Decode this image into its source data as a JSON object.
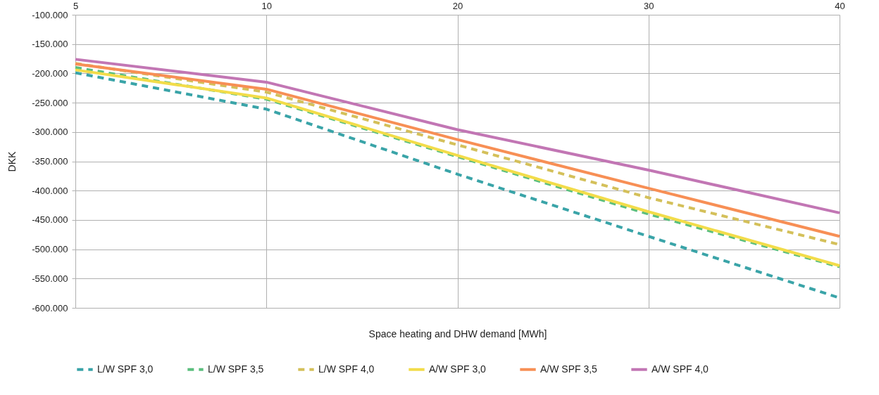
{
  "chart_data": {
    "type": "line",
    "xlabel": "Space heating and DHW demand [MWh]",
    "ylabel": "DKK",
    "categories": [
      "5",
      "10",
      "20",
      "30",
      "40"
    ],
    "series": [
      {
        "name": "L/W SPF 3,0",
        "color": "#3aa4a8",
        "line_style": "dashed",
        "values": [
          -199000,
          -261000,
          -372000,
          -478000,
          -583000
        ]
      },
      {
        "name": "L/W SPF 3,5",
        "color": "#5bbf7e",
        "line_style": "dashed",
        "values": [
          -190000,
          -244000,
          -342000,
          -440000,
          -530000
        ]
      },
      {
        "name": "L/W SPF 4,0",
        "color": "#d4c05a",
        "line_style": "dashed",
        "values": [
          -183000,
          -232000,
          -322000,
          -412000,
          -492000
        ]
      },
      {
        "name": "A/W SPF 3,0",
        "color": "#f2dc4a",
        "line_style": "solid",
        "values": [
          -194000,
          -242000,
          -340000,
          -436000,
          -528000
        ]
      },
      {
        "name": "A/W SPF 3,5",
        "color": "#f78f55",
        "line_style": "solid",
        "values": [
          -184000,
          -227000,
          -313000,
          -396000,
          -478000
        ]
      },
      {
        "name": "A/W SPF 4,0",
        "color": "#c276b4",
        "line_style": "solid",
        "values": [
          -176000,
          -215000,
          -296000,
          -365000,
          -438000
        ]
      }
    ],
    "ylim": [
      -600000,
      -100000
    ],
    "yticks": [
      {
        "value": -100000,
        "label": "-100.000"
      },
      {
        "value": -150000,
        "label": "-150.000"
      },
      {
        "value": -200000,
        "label": "-200.000"
      },
      {
        "value": -250000,
        "label": "-250.000"
      },
      {
        "value": -300000,
        "label": "-300.000"
      },
      {
        "value": -350000,
        "label": "-350.000"
      },
      {
        "value": -400000,
        "label": "-400.000"
      },
      {
        "value": -450000,
        "label": "-450.000"
      },
      {
        "value": -500000,
        "label": "-500.000"
      },
      {
        "value": -550000,
        "label": "-550.000"
      },
      {
        "value": -600000,
        "label": "-600.000"
      }
    ],
    "grid": true,
    "legend": "bottom",
    "marker": "none"
  }
}
